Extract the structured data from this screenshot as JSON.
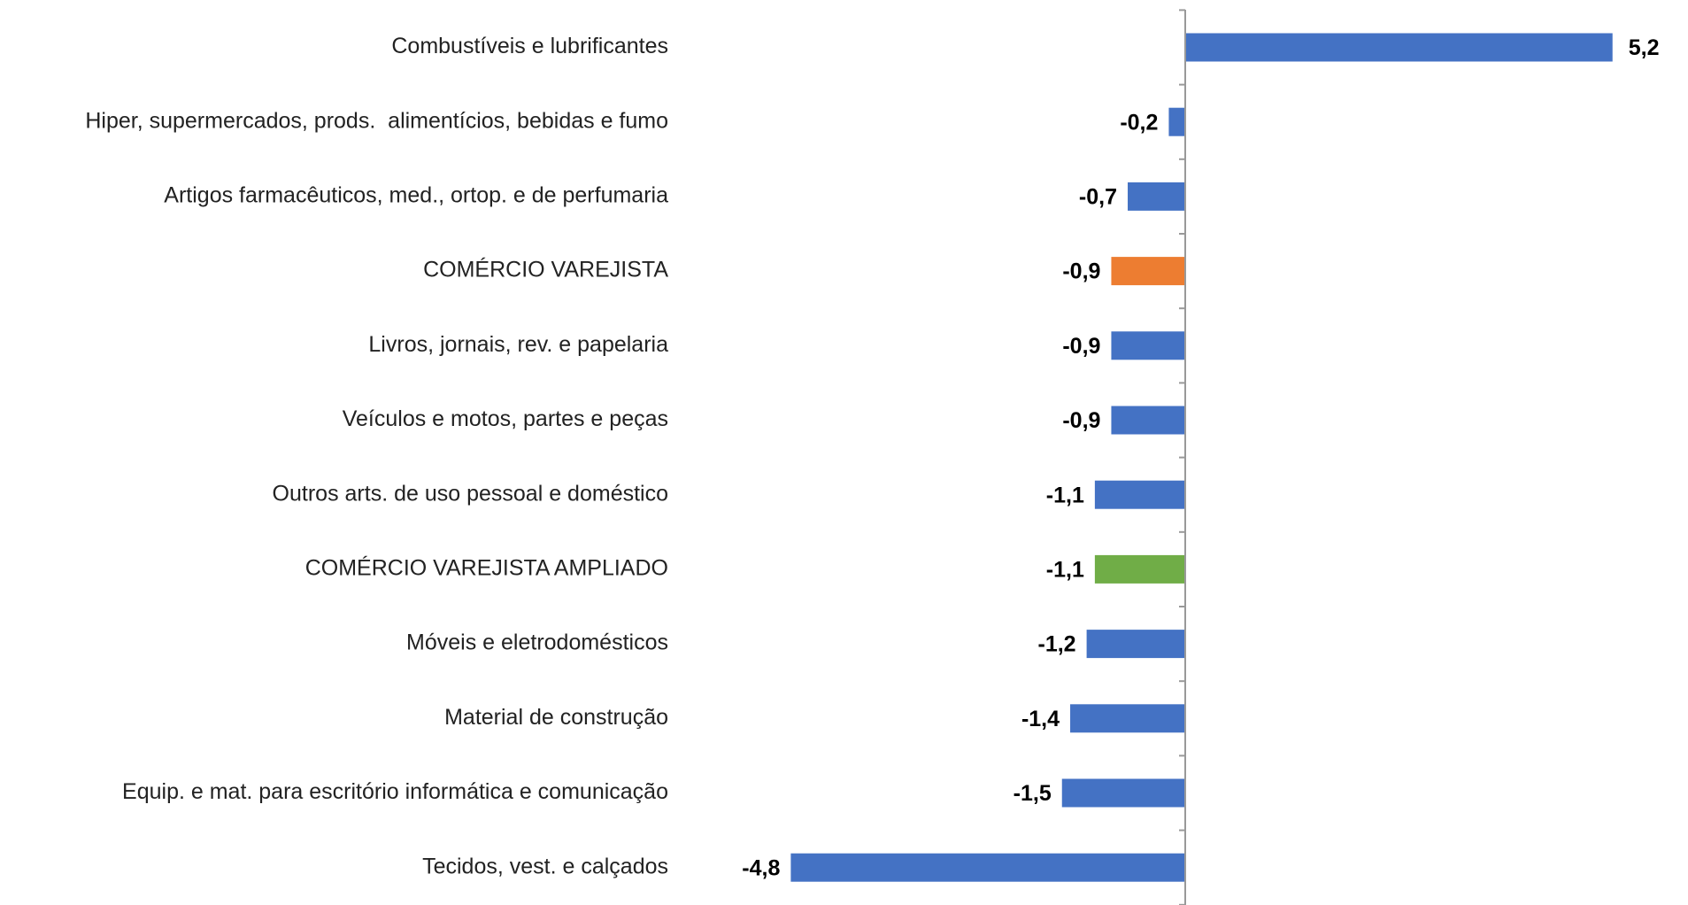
{
  "chart_data": {
    "type": "hbar",
    "categories": [
      "Combustíveis e lubrificantes",
      "Hiper, supermercados, prods.  alimentícios, bebidas e fumo",
      "Artigos farmacêuticos, med., ortop. e de perfumaria",
      "COMÉRCIO VAREJISTA",
      "Livros, jornais, rev. e papelaria",
      "Veículos e motos, partes e peças",
      "Outros arts. de uso pessoal e doméstico",
      "COMÉRCIO VAREJISTA AMPLIADO",
      "Móveis e eletrodomésticos",
      "Material de construção",
      "Equip. e mat. para escritório informática e comunicação",
      "Tecidos, vest. e calçados"
    ],
    "values": [
      5.2,
      -0.2,
      -0.7,
      -0.9,
      -0.9,
      -0.9,
      -1.1,
      -1.1,
      -1.2,
      -1.4,
      -1.5,
      -4.8
    ],
    "value_labels": [
      "5,2",
      "-0,2",
      "-0,7",
      "-0,9",
      "-0,9",
      "-0,9",
      "-1,1",
      "-1,1",
      "-1,2",
      "-1,4",
      "-1,5",
      "-4,8"
    ],
    "colors": [
      "#4472c4",
      "#4472c4",
      "#4472c4",
      "#ed7d31",
      "#4472c4",
      "#4472c4",
      "#4472c4",
      "#70ad47",
      "#4472c4",
      "#4472c4",
      "#4472c4",
      "#4472c4"
    ],
    "xlim": [
      -6,
      6
    ]
  }
}
